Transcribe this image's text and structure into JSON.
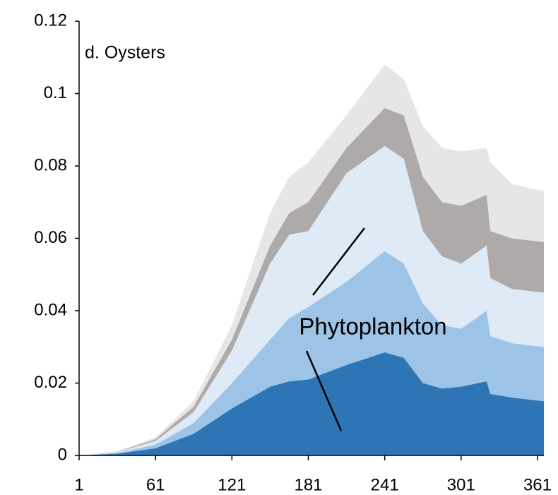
{
  "chart_data": {
    "type": "stacked_area",
    "title": "d. Oysters",
    "annotation": "Phytoplankton",
    "x": [
      1,
      31,
      61,
      91,
      121,
      151,
      166,
      181,
      211,
      241,
      256,
      271,
      286,
      301,
      321,
      324,
      341,
      366
    ],
    "series": [
      {
        "color": "#2e75b6",
        "values": [
          0,
          0.0005,
          0.002,
          0.006,
          0.013,
          0.019,
          0.0205,
          0.021,
          0.025,
          0.0285,
          0.027,
          0.02,
          0.0185,
          0.019,
          0.0205,
          0.017,
          0.016,
          0.015
        ]
      },
      {
        "color": "#9dc3e6",
        "values": [
          0,
          0.0002,
          0.001,
          0.003,
          0.007,
          0.013,
          0.0175,
          0.02,
          0.023,
          0.028,
          0.026,
          0.022,
          0.0175,
          0.016,
          0.0195,
          0.016,
          0.015,
          0.015
        ]
      },
      {
        "color": "#deebf7",
        "values": [
          0,
          0.0002,
          0.001,
          0.003,
          0.009,
          0.021,
          0.023,
          0.021,
          0.03,
          0.029,
          0.029,
          0.02,
          0.019,
          0.018,
          0.018,
          0.016,
          0.015,
          0.015
        ]
      },
      {
        "color": "#aeaaaa",
        "values": [
          0,
          0.0001,
          0.0005,
          0.0015,
          0.003,
          0.005,
          0.006,
          0.008,
          0.007,
          0.0105,
          0.012,
          0.015,
          0.015,
          0.016,
          0.014,
          0.013,
          0.014,
          0.014
        ]
      },
      {
        "color": "#e7e6e6",
        "values": [
          0,
          0.0002,
          0.0005,
          0.0015,
          0.004,
          0.009,
          0.01,
          0.011,
          0.009,
          0.012,
          0.01,
          0.014,
          0.015,
          0.015,
          0.013,
          0.019,
          0.015,
          0.014
        ]
      }
    ],
    "xlim": [
      1,
      366
    ],
    "ylim": [
      0,
      0.12
    ],
    "xticks": [
      1,
      61,
      121,
      181,
      241,
      301,
      361
    ],
    "yticks": [
      0,
      0.02,
      0.04,
      0.06,
      0.08,
      0.1,
      0.12
    ]
  }
}
